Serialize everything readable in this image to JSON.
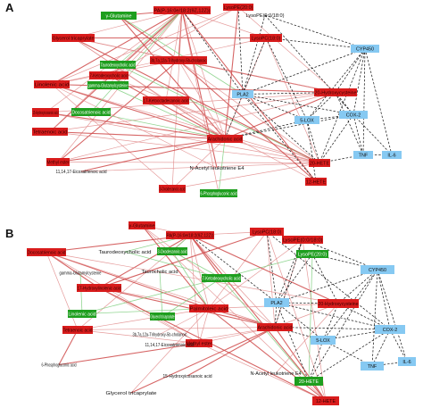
{
  "colors": {
    "up": "#d91c1c",
    "down": "#1e9e1e",
    "cytokine": "#86c9f2",
    "edge_positive": "#e08a8a",
    "edge_positive_strong": "#cf4a4a",
    "edge_negative": "#7fcf7f",
    "edge_dashed": "#222222"
  },
  "panels": [
    {
      "label": "A",
      "nodes": [
        {
          "id": "glut",
          "label": "γ-Glutamine",
          "type": "down"
        },
        {
          "id": "pa",
          "label": "PA(P-16:0e/18:2(9Z,12Z))",
          "type": "up"
        },
        {
          "id": "lpe200",
          "label": "LysoPE(20:0)",
          "type": "up"
        },
        {
          "id": "lpe180",
          "label": "LysoPE(0:0/18:0)",
          "type": "none"
        },
        {
          "id": "glyc",
          "label": "Glycerol tricaprylate",
          "type": "up"
        },
        {
          "id": "lpc180",
          "label": "LysoPC(18:0)",
          "type": "up"
        },
        {
          "id": "cyp450",
          "label": "CYP450",
          "type": "cytokine"
        },
        {
          "id": "chol",
          "label": "3b,7a,12a-Trihydroxy-5b-cholanoic",
          "type": "up"
        },
        {
          "id": "taur",
          "label": "Taurodeoxycholic acid",
          "type": "down"
        },
        {
          "id": "keto7",
          "label": "7-Ketodeoxycholic acid",
          "type": "up"
        },
        {
          "id": "gamma",
          "label": "gamma-Glutamylcysteine",
          "type": "down"
        },
        {
          "id": "linolenic",
          "label": "Linolenic acid",
          "type": "up"
        },
        {
          "id": "pla2",
          "label": "PLA2",
          "type": "cytokine"
        },
        {
          "id": "hydroxy20",
          "label": "20-Hydroxycysteine",
          "type": "up"
        },
        {
          "id": "ketooctadec17",
          "label": "17-Ketooctadecanoic acid",
          "type": "up"
        },
        {
          "id": "hydroxy15",
          "label": "15-Hydroxyicosanoic acid",
          "type": "up"
        },
        {
          "id": "docos",
          "label": "Docosatrienoic acid",
          "type": "down"
        },
        {
          "id": "lox5",
          "label": "5-LOX",
          "type": "cytokine"
        },
        {
          "id": "cox2",
          "label": "COX-2",
          "type": "cytokine"
        },
        {
          "id": "tetraenoic",
          "label": "Tetraenoic acid",
          "type": "up"
        },
        {
          "id": "arach",
          "label": "Arachidonic acid",
          "type": "up"
        },
        {
          "id": "hete20",
          "label": "20-HETE",
          "type": "up"
        },
        {
          "id": "tnf",
          "label": "TNF",
          "type": "cytokine"
        },
        {
          "id": "il6",
          "label": "IL-6",
          "type": "cytokine"
        },
        {
          "id": "methyl",
          "label": "Methyl ester",
          "type": "up"
        },
        {
          "id": "eicosadienoic",
          "label": "11,14,17-Eicosatrienoic acid",
          "type": "none"
        },
        {
          "id": "leuk",
          "label": "N-Acetyl leukotriene E4",
          "type": "none"
        },
        {
          "id": "hete12",
          "label": "12-HETE",
          "type": "up"
        },
        {
          "id": "oxo3",
          "label": "3-Oxodecanoic acid",
          "type": "up"
        },
        {
          "id": "phos6",
          "label": "6-Phosphogluconic acid",
          "type": "down"
        }
      ]
    },
    {
      "label": "B",
      "nodes": [
        {
          "id": "glut",
          "label": "γ-Glutamine",
          "type": "up"
        },
        {
          "id": "pa",
          "label": "PA(P-16:0e/18:2(9Z,12Z))",
          "type": "up"
        },
        {
          "id": "lpc180",
          "label": "LysoPC(18:0)",
          "type": "up"
        },
        {
          "id": "lpe180",
          "label": "LysoPE(0:0/18:0)",
          "type": "up"
        },
        {
          "id": "docos",
          "label": "Docosatrienoic acid",
          "type": "up"
        },
        {
          "id": "taur",
          "label": "Taurodeoxycholic acid",
          "type": "none"
        },
        {
          "id": "oxo3",
          "label": "3-Oxodecanoic acid",
          "type": "down"
        },
        {
          "id": "lpe200",
          "label": "LysoPE(20:0)",
          "type": "down"
        },
        {
          "id": "cyp450",
          "label": "CYP450",
          "type": "cytokine"
        },
        {
          "id": "gamma",
          "label": "gamma-Glutamylcysteine",
          "type": "none"
        },
        {
          "id": "tauro2",
          "label": "Taurocholic acid",
          "type": "none"
        },
        {
          "id": "keto7",
          "label": "7-Ketodeoxycholic acid",
          "type": "down"
        },
        {
          "id": "hydroxy17",
          "label": "17-Hydroxylinolenic acid",
          "type": "up"
        },
        {
          "id": "pla2",
          "label": "PLA2",
          "type": "cytokine"
        },
        {
          "id": "hydroxy20",
          "label": "20-Hydroxycysteine",
          "type": "up"
        },
        {
          "id": "linolenic",
          "label": "Linolenic acid",
          "type": "down"
        },
        {
          "id": "palm",
          "label": "Palmitoleic acid",
          "type": "up"
        },
        {
          "id": "glyc",
          "label": "Glycerol tricaprylate",
          "type": "down"
        },
        {
          "id": "chol",
          "label": "3b,7a,12a-Trihydroxy-5b-cholanoic",
          "type": "none"
        },
        {
          "id": "arach",
          "label": "Arachidonic acid",
          "type": "up"
        },
        {
          "id": "cox2",
          "label": "COX-2",
          "type": "cytokine"
        },
        {
          "id": "tetraenoic",
          "label": "Tetraenoic acid",
          "type": "up"
        },
        {
          "id": "lox5",
          "label": "5-LOX",
          "type": "cytokine"
        },
        {
          "id": "methyl",
          "label": "Methyl ester",
          "type": "up"
        },
        {
          "id": "eicosadienoic",
          "label": "11,14,17-Eicosatrienoic acid",
          "type": "none"
        },
        {
          "id": "tnf",
          "label": "TNF",
          "type": "cytokine"
        },
        {
          "id": "il6",
          "label": "IL-6",
          "type": "cytokine"
        },
        {
          "id": "phos6",
          "label": "6-Phosphogluconic acid",
          "type": "none"
        },
        {
          "id": "hydroxy15",
          "label": "15-Hydroxyicosanoic acid",
          "type": "none"
        },
        {
          "id": "leuk",
          "label": "N-Acetyl leukotriene E4",
          "type": "none"
        },
        {
          "id": "hete20",
          "label": "20-HETE",
          "type": "down"
        },
        {
          "id": "glycerol2",
          "label": "Glycerol tricaprylate",
          "type": "none"
        },
        {
          "id": "hete12",
          "label": "12-HETE",
          "type": "up"
        }
      ]
    }
  ]
}
